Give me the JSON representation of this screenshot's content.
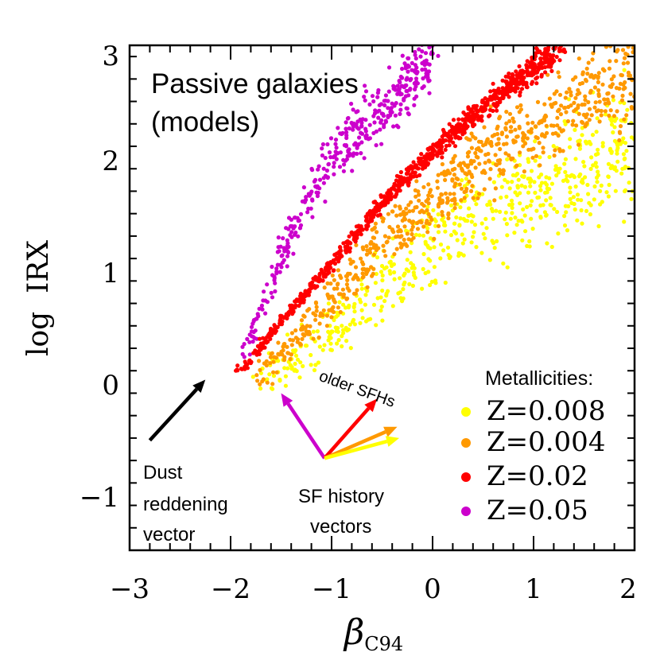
{
  "chart_data": {
    "type": "scatter",
    "title": "Passive galaxies (models)",
    "title_lines": [
      "Passive galaxies",
      "(models)"
    ],
    "xlabel": "β",
    "xlabel_sub": "C94",
    "ylabel": "log  IRX",
    "xlim": [
      -3,
      2
    ],
    "ylim": [
      -1.5,
      3
    ],
    "x_ticks": [
      -3,
      -2,
      -1,
      0,
      1,
      2
    ],
    "x_tick_labels": [
      "−3",
      "−2",
      "−1",
      "0",
      "1",
      "2"
    ],
    "y_ticks": [
      -1,
      0,
      1,
      2,
      3
    ],
    "y_tick_labels": [
      "−1",
      "0",
      "1",
      "2",
      "3"
    ],
    "legend": {
      "title": "Metallicities:",
      "placement": "bottom-right",
      "entries": [
        {
          "label": "Z=0.008",
          "color": "#ffff00"
        },
        {
          "label": "Z=0.004",
          "color": "#ff9900"
        },
        {
          "label": "Z=0.02",
          "color": "#ff0000"
        },
        {
          "label": "Z=0.05",
          "color": "#cc00cc"
        }
      ]
    },
    "series": [
      {
        "name": "Z=0.008",
        "color": "#ffff00",
        "approx_points": 600,
        "ridge": [
          [
            -1.7,
            -0.05
          ],
          [
            -1.0,
            0.45
          ],
          [
            -0.5,
            0.85
          ],
          [
            0.0,
            1.2
          ],
          [
            0.5,
            1.55
          ],
          [
            1.0,
            1.7
          ],
          [
            1.5,
            1.9
          ],
          [
            2.0,
            2.1
          ]
        ],
        "spread": 0.55
      },
      {
        "name": "Z=0.004",
        "color": "#ff9900",
        "approx_points": 700,
        "ridge": [
          [
            -1.75,
            0.0
          ],
          [
            -1.0,
            0.75
          ],
          [
            -0.5,
            1.25
          ],
          [
            0.0,
            1.6
          ],
          [
            0.5,
            2.0
          ],
          [
            1.0,
            2.25
          ],
          [
            1.5,
            2.5
          ],
          [
            2.0,
            2.8
          ]
        ],
        "spread": 0.4
      },
      {
        "name": "Z=0.02",
        "color": "#ff0000",
        "approx_points": 900,
        "ridge": [
          [
            -1.9,
            0.1
          ],
          [
            -1.5,
            0.55
          ],
          [
            -1.0,
            1.05
          ],
          [
            -0.5,
            1.6
          ],
          [
            0.0,
            2.05
          ],
          [
            0.5,
            2.45
          ],
          [
            1.0,
            2.8
          ],
          [
            1.3,
            3.0
          ]
        ],
        "spread": 0.12
      },
      {
        "name": "Z=0.05",
        "color": "#cc00cc",
        "approx_points": 400,
        "ridge": [
          [
            -1.85,
            0.3
          ],
          [
            -1.5,
            1.1
          ],
          [
            -1.2,
            1.75
          ],
          [
            -0.8,
            2.2
          ],
          [
            -0.4,
            2.5
          ],
          [
            0.0,
            2.95
          ]
        ],
        "spread": 0.35
      }
    ],
    "dust_vector": {
      "from": [
        -2.8,
        -0.52
      ],
      "to": [
        -2.25,
        0.02
      ],
      "color": "#000000"
    },
    "sfh_vectors": {
      "origin": [
        -1.07,
        -0.68
      ],
      "vectors": [
        {
          "to": [
            -1.5,
            -0.1
          ],
          "color": "#cc00cc"
        },
        {
          "to": [
            -0.55,
            -0.15
          ],
          "color": "#ff0000"
        },
        {
          "to": [
            -0.35,
            -0.4
          ],
          "color": "#ff9900"
        },
        {
          "to": [
            -0.33,
            -0.5
          ],
          "color": "#ffff00"
        }
      ]
    },
    "annotations": {
      "older_sfhs": "older SFHs",
      "dust_lines": [
        "Dust",
        "reddening",
        "vector"
      ],
      "sfh_lines": [
        "SF history",
        "vectors"
      ]
    }
  }
}
